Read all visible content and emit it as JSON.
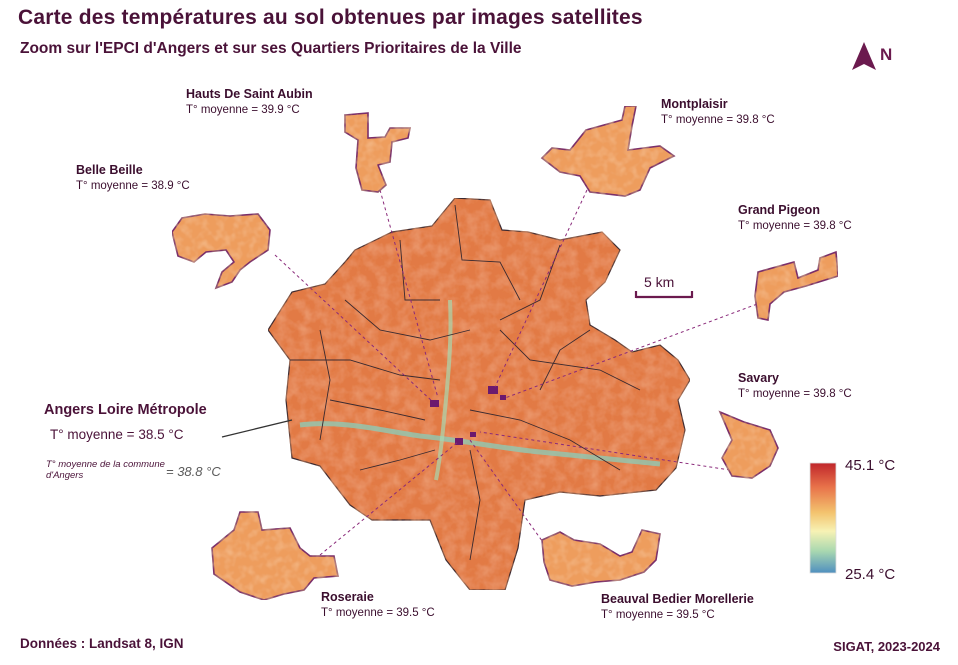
{
  "header": {
    "title": "Carte des températures au sol obtenues par images satellites",
    "subtitle": "Zoom sur l'EPCI d'Angers et sur ses Quartiers Prioritaires de la Ville"
  },
  "north_arrow": {
    "letter": "N"
  },
  "metropole": {
    "name": "Angers Loire Métropole",
    "temp": "T° moyenne = 38.5 °C",
    "commune_label": "T° moyenne de la commune d'Angers",
    "commune_temp": "= 38.8 °C"
  },
  "quartiers": [
    {
      "name": "Hauts De Saint Aubin",
      "temp": "T° moyenne = 39.9 °C"
    },
    {
      "name": "Montplaisir",
      "temp": "T° moyenne = 39.8 °C"
    },
    {
      "name": "Belle Beille",
      "temp": "T° moyenne = 38.9 °C"
    },
    {
      "name": "Grand Pigeon",
      "temp": "T° moyenne = 39.8 °C"
    },
    {
      "name": "Savary",
      "temp": "T° moyenne = 39.8 °C"
    },
    {
      "name": "Roseraie",
      "temp": "T° moyenne = 39.5 °C"
    },
    {
      "name": "Beauval Bedier Morellerie",
      "temp": "T° moyenne = 39.5 °C"
    }
  ],
  "scale_bar": {
    "label": "5 km"
  },
  "legend": {
    "max": "45.1 °C",
    "min": "25.4 °C",
    "colors": [
      "#c0262b",
      "#e8734a",
      "#f3c36e",
      "#f7f2b4",
      "#a9d8b0",
      "#4f8fbf"
    ]
  },
  "footer": {
    "source": "Données : Landsat 8, IGN",
    "credit": "SIGAT, 2023-2024"
  },
  "colors": {
    "text": "#4a1238",
    "boundary": "#3a2a30",
    "qpv_outline": "#7a2f6a",
    "leader_line": "#8a2a7a"
  }
}
